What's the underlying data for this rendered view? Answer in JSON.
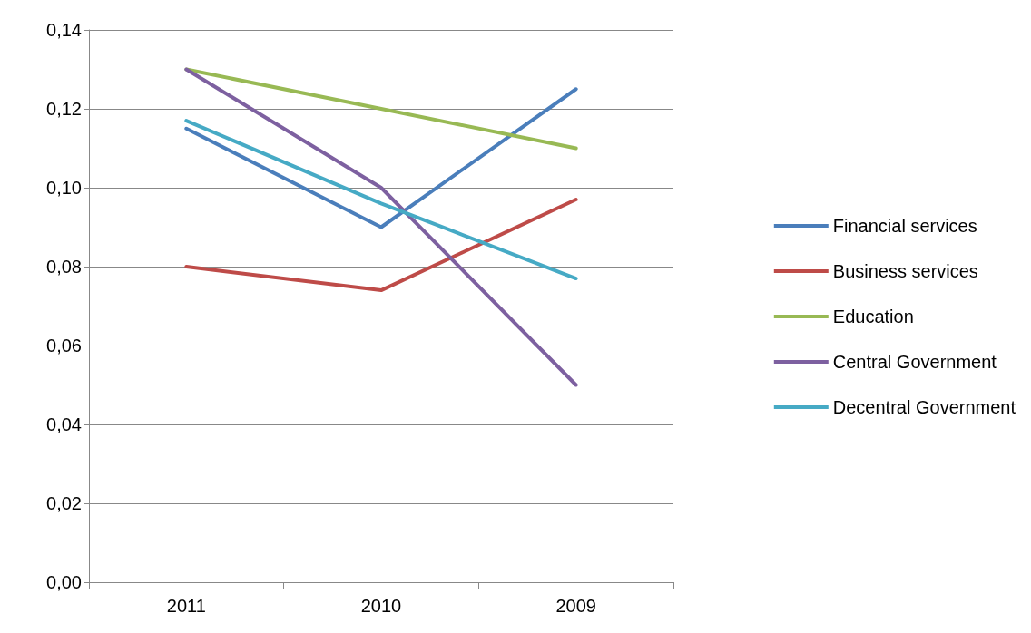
{
  "chart_data": {
    "type": "line",
    "categories": [
      "2011",
      "2010",
      "2009"
    ],
    "series": [
      {
        "name": "Financial services",
        "color": "#4a7ebb",
        "values": [
          0.115,
          0.09,
          0.125
        ]
      },
      {
        "name": "Business services",
        "color": "#be4b48",
        "values": [
          0.08,
          0.074,
          0.097
        ]
      },
      {
        "name": "Education",
        "color": "#98b954",
        "values": [
          0.13,
          0.12,
          0.11
        ]
      },
      {
        "name": "Central Government",
        "color": "#7d60a0",
        "values": [
          0.13,
          0.1,
          0.05
        ]
      },
      {
        "name": "Decentral Government",
        "color": "#46aac5",
        "values": [
          0.117,
          0.096,
          0.077
        ]
      }
    ],
    "ylim": [
      0,
      0.14
    ],
    "yticks": [
      {
        "value": 0,
        "label": "0,00"
      },
      {
        "value": 0.02,
        "label": "0,02"
      },
      {
        "value": 0.04,
        "label": "0,04"
      },
      {
        "value": 0.06,
        "label": "0,06"
      },
      {
        "value": 0.08,
        "label": "0,08"
      },
      {
        "value": 0.1,
        "label": "0,10"
      },
      {
        "value": 0.12,
        "label": "0,12"
      },
      {
        "value": 0.14,
        "label": "0,14"
      }
    ],
    "grid": "y",
    "legend": "right",
    "marker": "none",
    "line_style": "solid"
  }
}
